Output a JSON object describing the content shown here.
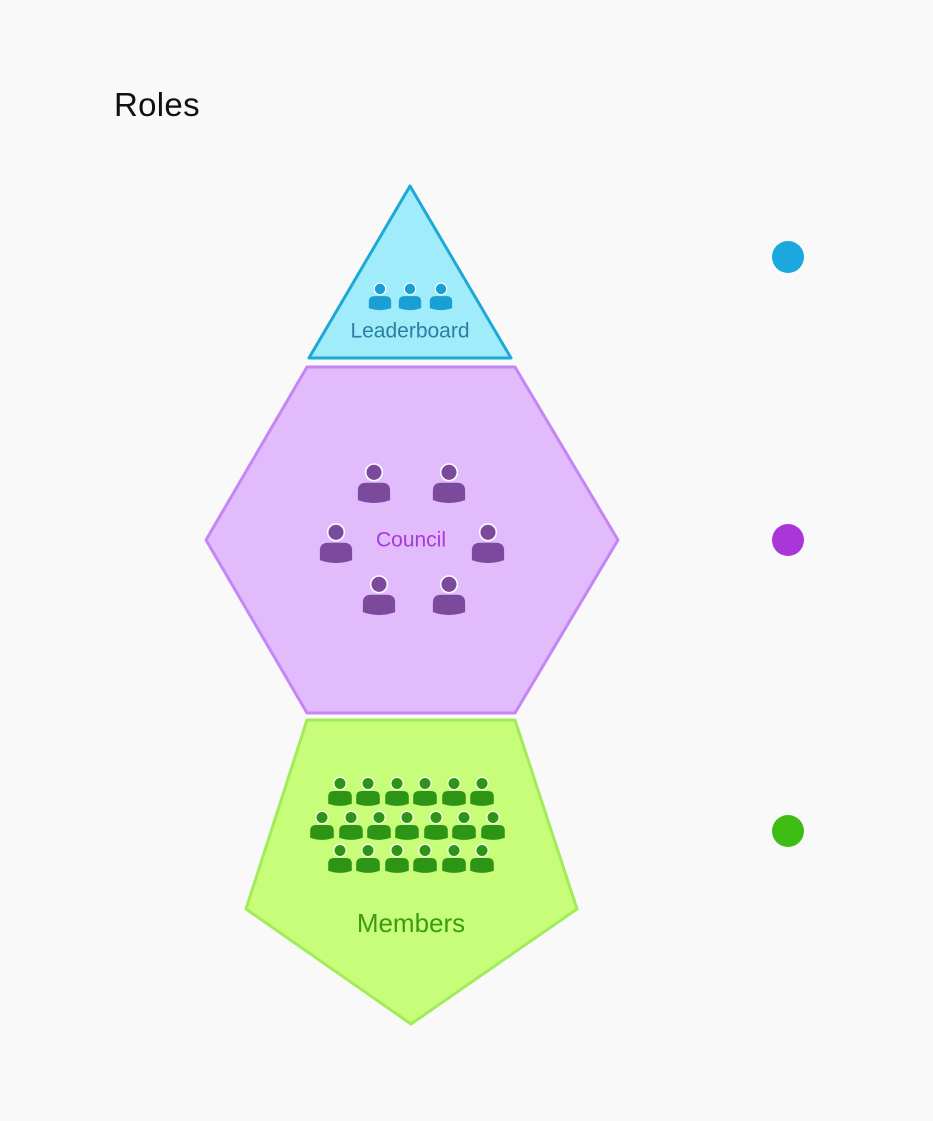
{
  "title": "Roles",
  "roles": [
    {
      "id": "leaderboard",
      "label": "Leaderboard",
      "shape": "triangle",
      "member_icon_count": 3,
      "colors": {
        "fill": "#a0ecfb",
        "stroke": "#1ea8d6",
        "icon": "#1a9fd4",
        "label": "#2a7fa3",
        "dot": "#1ba8de"
      }
    },
    {
      "id": "council",
      "label": "Council",
      "shape": "hexagon",
      "member_icon_count": 6,
      "colors": {
        "fill": "#e1bbfb",
        "stroke": "#c685f5",
        "icon": "#7c4a9c",
        "label": "#a83ad6",
        "dot": "#aa36d9"
      }
    },
    {
      "id": "members",
      "label": "Members",
      "shape": "pentagon",
      "member_icon_count": 19,
      "colors": {
        "fill": "#c8fd7a",
        "stroke": "#a2ec5b",
        "icon": "#2d9415",
        "label": "#3b9b14",
        "dot": "#3dbd14"
      }
    }
  ]
}
